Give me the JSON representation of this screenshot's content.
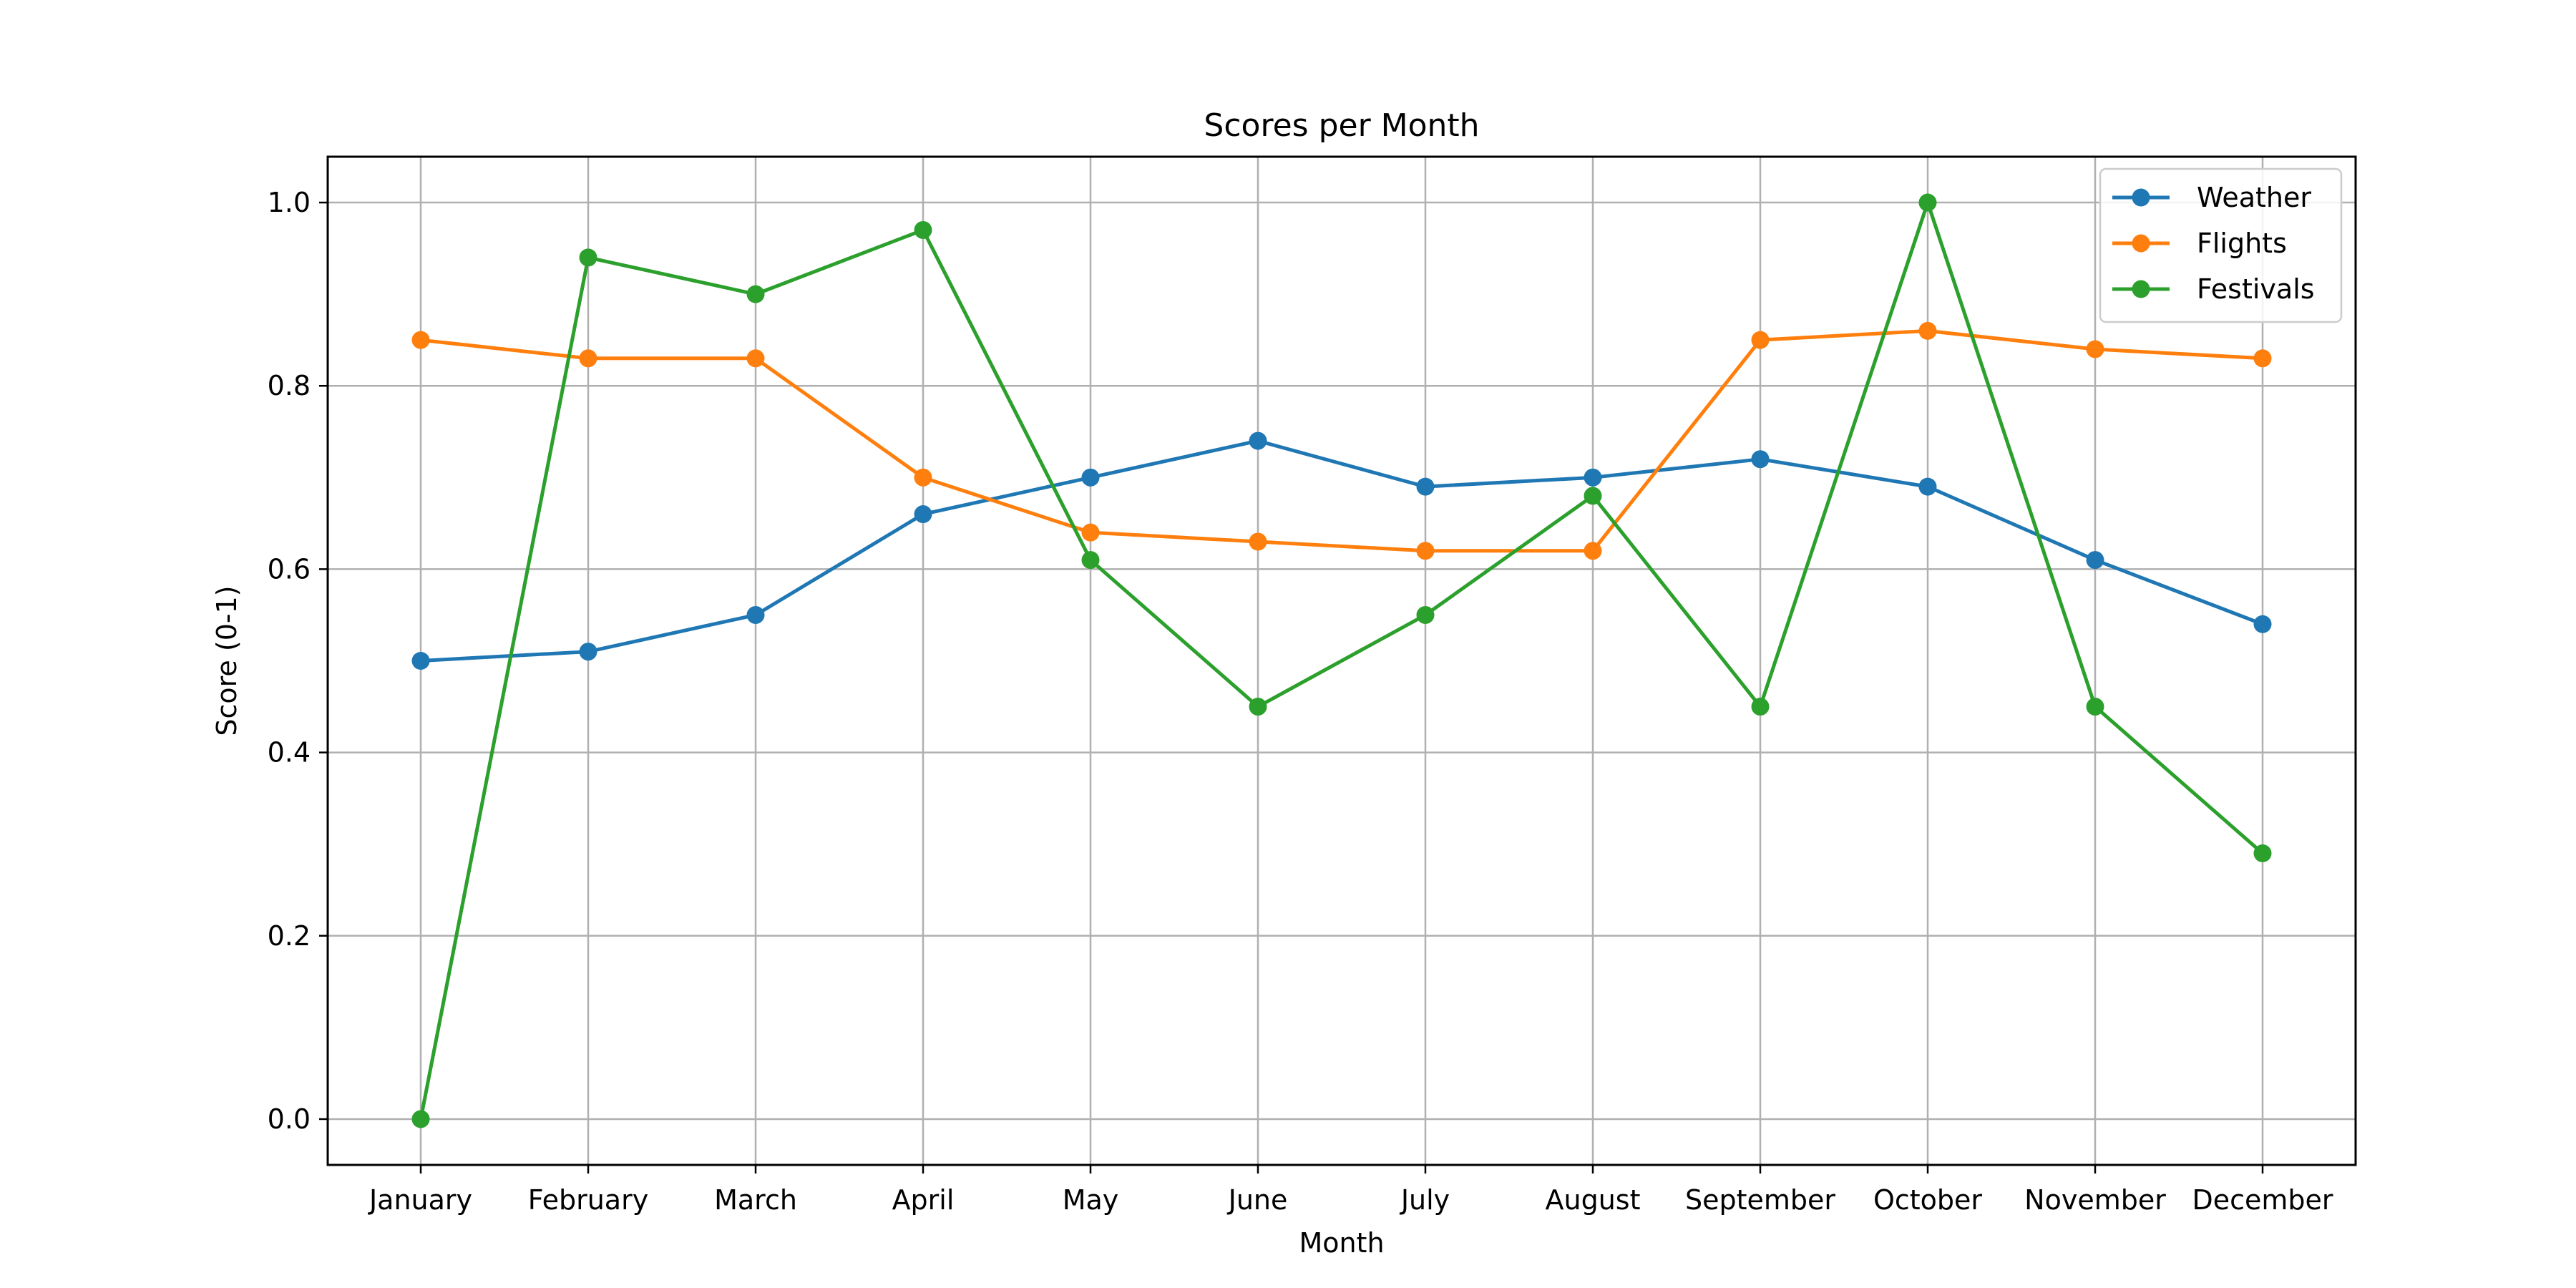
{
  "chart_data": {
    "type": "line",
    "title": "Scores per Month",
    "xlabel": "Month",
    "ylabel": "Score (0-1)",
    "categories": [
      "January",
      "February",
      "March",
      "April",
      "May",
      "June",
      "July",
      "August",
      "September",
      "October",
      "November",
      "December"
    ],
    "ylim": [
      -0.05,
      1.05
    ],
    "yticks": [
      0.0,
      0.2,
      0.4,
      0.6,
      0.8,
      1.0
    ],
    "ytick_labels": [
      "0.0",
      "0.2",
      "0.4",
      "0.6",
      "0.8",
      "1.0"
    ],
    "grid": true,
    "legend_position": "top-right",
    "series": [
      {
        "name": "Weather",
        "color": "#1f77b4",
        "marker": "circle",
        "values": [
          0.5,
          0.51,
          0.55,
          0.66,
          0.7,
          0.74,
          0.69,
          0.7,
          0.72,
          0.69,
          0.61,
          0.54
        ]
      },
      {
        "name": "Flights",
        "color": "#ff7f0e",
        "marker": "circle",
        "values": [
          0.85,
          0.83,
          0.83,
          0.7,
          0.64,
          0.63,
          0.62,
          0.62,
          0.85,
          0.86,
          0.84,
          0.83
        ]
      },
      {
        "name": "Festivals",
        "color": "#2ca02c",
        "marker": "circle",
        "values": [
          0.0,
          0.94,
          0.9,
          0.97,
          0.61,
          0.45,
          0.55,
          0.68,
          0.45,
          1.0,
          0.45,
          0.29
        ]
      }
    ]
  }
}
